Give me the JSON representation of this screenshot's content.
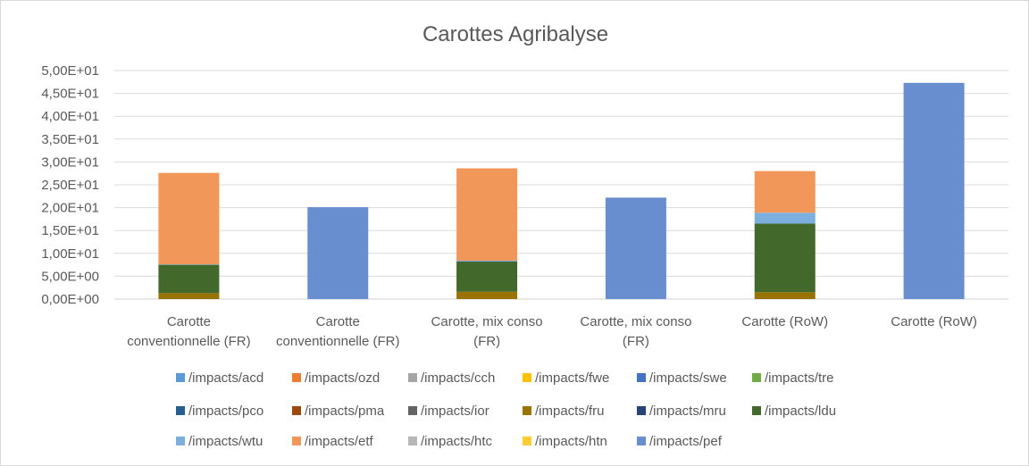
{
  "chart_data": {
    "type": "bar",
    "stacked": true,
    "title": "Carottes Agribalyse",
    "xlabel": "",
    "ylabel": "",
    "ylim": [
      0,
      50
    ],
    "y_ticks": [
      "0,00E+00",
      "5,00E+00",
      "1,00E+01",
      "1,50E+01",
      "2,00E+01",
      "2,50E+01",
      "3,00E+01",
      "3,50E+01",
      "4,00E+01",
      "4,50E+01",
      "5,00E+01"
    ],
    "grid": true,
    "legend_position": "bottom",
    "categories": [
      [
        "Carotte",
        "conventionnelle (FR)"
      ],
      [
        "Carotte",
        "conventionnelle (FR)"
      ],
      [
        "Carotte, mix conso",
        "(FR)"
      ],
      [
        "Carotte, mix conso",
        "(FR)"
      ],
      [
        "Carotte (RoW)"
      ],
      [
        "Carotte (RoW)"
      ]
    ],
    "series": [
      {
        "name": "/impacts/acd",
        "color": "#5b9bd5",
        "values": [
          0,
          0,
          0,
          0,
          0,
          0
        ]
      },
      {
        "name": "/impacts/ozd",
        "color": "#ed7d31",
        "values": [
          0,
          0,
          0,
          0,
          0,
          0
        ]
      },
      {
        "name": "/impacts/cch",
        "color": "#a5a5a5",
        "values": [
          0,
          0,
          0,
          0,
          0,
          0
        ]
      },
      {
        "name": "/impacts/fwe",
        "color": "#ffc000",
        "values": [
          0,
          0,
          0,
          0,
          0,
          0
        ]
      },
      {
        "name": "/impacts/swe",
        "color": "#4472c4",
        "values": [
          0,
          0,
          0,
          0,
          0,
          0
        ]
      },
      {
        "name": "/impacts/tre",
        "color": "#70ad47",
        "values": [
          0,
          0,
          0,
          0,
          0,
          0
        ]
      },
      {
        "name": "/impacts/pco",
        "color": "#255e91",
        "values": [
          0,
          0,
          0,
          0,
          0,
          0
        ]
      },
      {
        "name": "/impacts/pma",
        "color": "#9e480e",
        "values": [
          0,
          0,
          0,
          0,
          0,
          0
        ]
      },
      {
        "name": "/impacts/ior",
        "color": "#636363",
        "values": [
          0,
          0,
          0,
          0,
          0,
          0
        ]
      },
      {
        "name": "/impacts/fru",
        "color": "#997300",
        "values": [
          1.3,
          0,
          1.6,
          0,
          1.5,
          0
        ]
      },
      {
        "name": "/impacts/mru",
        "color": "#264478",
        "values": [
          0,
          0,
          0,
          0,
          0,
          0
        ]
      },
      {
        "name": "/impacts/ldu",
        "color": "#43682b",
        "values": [
          6.2,
          0,
          6.6,
          0,
          15.0,
          0
        ]
      },
      {
        "name": "/impacts/wtu",
        "color": "#7cafdd",
        "values": [
          0.1,
          0,
          0.2,
          0,
          2.4,
          0
        ]
      },
      {
        "name": "/impacts/etf",
        "color": "#f1975a",
        "values": [
          20.0,
          0,
          20.2,
          0,
          9.1,
          0
        ]
      },
      {
        "name": "/impacts/htc",
        "color": "#b7b7b7",
        "values": [
          0,
          0,
          0,
          0,
          0,
          0
        ]
      },
      {
        "name": "/impacts/htn",
        "color": "#ffcd33",
        "values": [
          0,
          0,
          0,
          0,
          0,
          0
        ]
      },
      {
        "name": "/impacts/pef",
        "color": "#698ed0",
        "values": [
          0,
          20.1,
          0,
          22.2,
          0,
          47.3
        ]
      }
    ]
  }
}
